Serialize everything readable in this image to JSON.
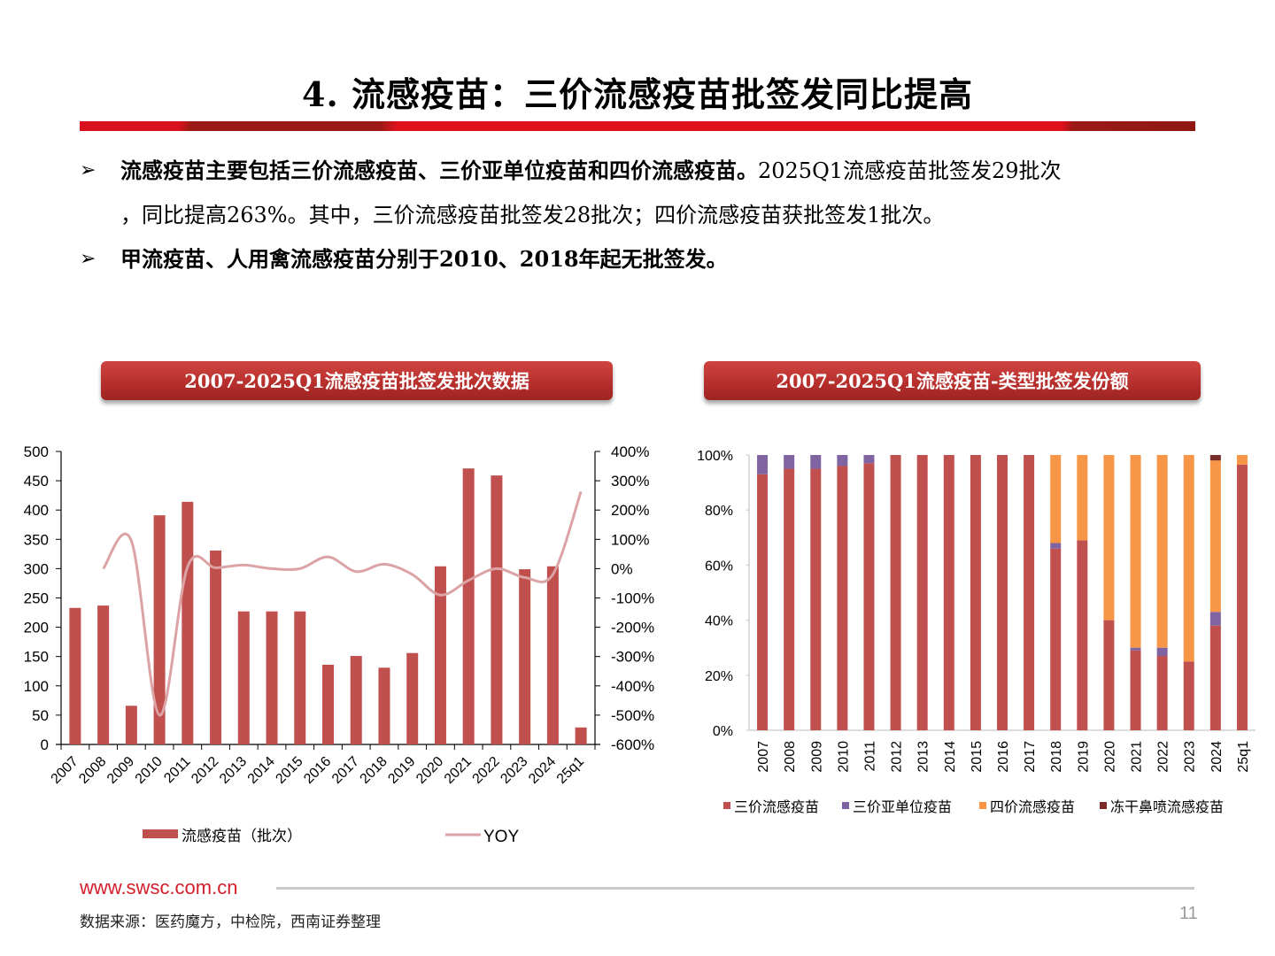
{
  "page": {
    "title": "4. 流感疫苗：三价流感疫苗批签发同比提高",
    "bullets": [
      {
        "bold": "流感疫苗主要包括三价流感疫苗、三价亚单位疫苗和四价流感疫苗。",
        "normal": "2025Q1流感疫苗批签发29批次",
        "continuation": "，同比提高263%。其中，三价流感疫苗批签发28批次；四价流感疫苗获批签发1批次。"
      },
      {
        "bold": "甲流疫苗、人用禽流感疫苗分别于2010、2018年起无批签发。",
        "normal": "",
        "continuation": ""
      }
    ],
    "bullet_glyph": "➢",
    "left_chart_title": "2007-2025Q1流感疫苗批签发批次数据",
    "right_chart_title": "2007-2025Q1流感疫苗-类型批签发份额",
    "footer_url": "www.swsc.com.cn",
    "footer_source": "数据来源：医药魔方，中检院，西南证券整理",
    "page_number": "11"
  },
  "colors": {
    "bar_red": "#c0504d",
    "yoy_line": "#dba3a5",
    "purple": "#8064a2",
    "orange": "#f79646",
    "dark_red": "#772c2a",
    "brand_red": "#e0101c"
  },
  "chart_data": [
    {
      "type": "bar",
      "title": "2007-2025Q1流感疫苗批签发批次数据",
      "categories": [
        "2007",
        "2008",
        "2009",
        "2010",
        "2011",
        "2012",
        "2013",
        "2014",
        "2015",
        "2016",
        "2017",
        "2018",
        "2019",
        "2020",
        "2021",
        "2022",
        "2023",
        "2024",
        "25q1"
      ],
      "series": [
        {
          "name": "流感疫苗（批次）",
          "type": "bar",
          "axis": "left",
          "values": [
            233,
            237,
            66,
            391,
            414,
            331,
            227,
            227,
            227,
            136,
            151,
            131,
            156,
            304,
            471,
            459,
            299,
            304,
            29
          ]
        },
        {
          "name": "YOY",
          "type": "line",
          "axis": "right",
          "unit": "%",
          "values": [
            null,
            0,
            95,
            -500,
            6,
            3,
            12,
            0,
            0,
            40,
            -10,
            15,
            -20,
            -90,
            -40,
            0,
            -30,
            -20,
            263
          ]
        }
      ],
      "ylim_left": [
        0,
        500
      ],
      "yticks_left": [
        "0",
        "50",
        "100",
        "150",
        "200",
        "250",
        "300",
        "350",
        "400",
        "450",
        "500"
      ],
      "ylim_right": [
        -600,
        400
      ],
      "yticks_right": [
        "-600%",
        "-500%",
        "-400%",
        "-300%",
        "-200%",
        "-100%",
        "0%",
        "100%",
        "200%",
        "300%",
        "400%"
      ],
      "legend": [
        "流感疫苗（批次）",
        "YOY"
      ],
      "legend_position": "bottom",
      "grid": false,
      "xlabel": "",
      "ylabel": ""
    },
    {
      "type": "bar",
      "stacked": true,
      "percent": true,
      "title": "2007-2025Q1流感疫苗-类型批签发份额",
      "categories": [
        "2007",
        "2008",
        "2009",
        "2010",
        "2011",
        "2012",
        "2013",
        "2014",
        "2015",
        "2016",
        "2017",
        "2018",
        "2019",
        "2020",
        "2021",
        "2022",
        "2023",
        "2024",
        "25q1"
      ],
      "series": [
        {
          "name": "三价流感疫苗",
          "values": [
            93,
            95,
            95,
            96,
            97,
            100,
            100,
            100,
            100,
            100,
            100,
            66,
            69,
            40,
            29,
            27,
            25,
            38,
            96.5
          ]
        },
        {
          "name": "三价亚单位疫苗",
          "values": [
            7,
            5,
            5,
            4,
            3,
            0,
            0,
            0,
            0,
            0,
            0,
            2,
            0,
            0,
            1,
            3,
            0,
            5,
            0
          ]
        },
        {
          "name": "四价流感疫苗",
          "values": [
            0,
            0,
            0,
            0,
            0,
            0,
            0,
            0,
            0,
            0,
            0,
            32,
            31,
            60,
            70,
            70,
            75,
            55,
            3.5
          ]
        },
        {
          "name": "冻干鼻喷流感疫苗",
          "values": [
            0,
            0,
            0,
            0,
            0,
            0,
            0,
            0,
            0,
            0,
            0,
            0,
            0,
            0,
            0,
            0,
            0,
            2,
            0
          ]
        }
      ],
      "ylim": [
        0,
        100
      ],
      "yticks": [
        "0%",
        "20%",
        "40%",
        "60%",
        "80%",
        "100%"
      ],
      "legend_position": "bottom",
      "grid": false,
      "xlabel": "",
      "ylabel": ""
    }
  ]
}
